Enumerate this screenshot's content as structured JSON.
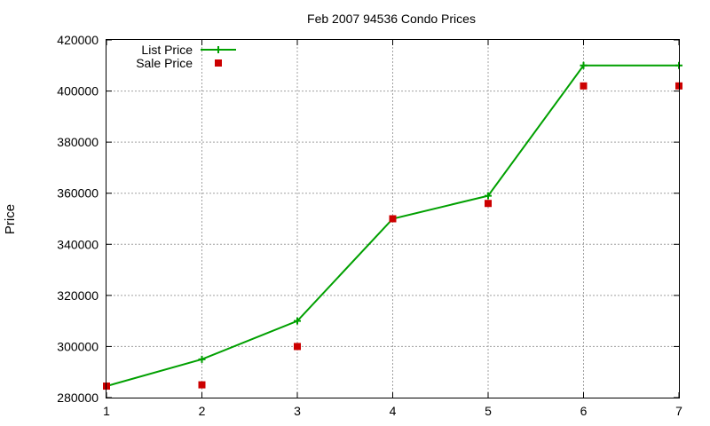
{
  "chart_data": {
    "type": "line",
    "title": "Feb 2007 94536 Condo Prices",
    "xlabel": "",
    "ylabel": "Price",
    "x": [
      1,
      2,
      3,
      4,
      5,
      6,
      7
    ],
    "xlim": [
      1,
      7
    ],
    "ylim": [
      280000,
      420000
    ],
    "x_ticks": [
      "1",
      "2",
      "3",
      "4",
      "5",
      "6",
      "7"
    ],
    "y_ticks": [
      "280000",
      "300000",
      "320000",
      "340000",
      "360000",
      "380000",
      "400000",
      "420000"
    ],
    "grid": true,
    "legend_position": "top-left",
    "series": [
      {
        "name": "List Price",
        "style": "lines+points",
        "marker": "plus",
        "color": "#00a000",
        "values": [
          284500,
          295000,
          310000,
          350000,
          359000,
          410000,
          410000
        ]
      },
      {
        "name": "Sale Price",
        "style": "points",
        "marker": "square",
        "color": "#cc0000",
        "values": [
          284500,
          285000,
          300000,
          350000,
          356000,
          402000,
          402000
        ]
      }
    ]
  }
}
